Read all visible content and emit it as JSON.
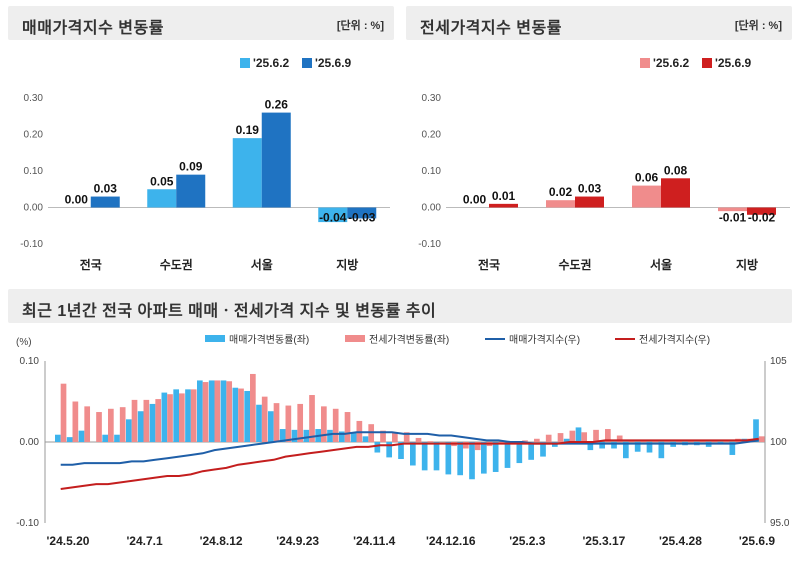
{
  "chart_data": [
    {
      "id": "sale",
      "type": "bar",
      "title": "매매가격지수 변동률",
      "unit_label": "[단위 : %]",
      "categories": [
        "전국",
        "수도권",
        "서울",
        "지방"
      ],
      "series": [
        {
          "name": "'25.6.2",
          "values": [
            0.0,
            0.05,
            0.19,
            -0.04
          ],
          "labels": [
            "0.00",
            "0.05",
            "0.19",
            "-0.04"
          ]
        },
        {
          "name": "'25.6.9",
          "values": [
            0.03,
            0.09,
            0.26,
            -0.03
          ],
          "labels": [
            "0.03",
            "0.09",
            "0.26",
            "-0.03"
          ]
        }
      ],
      "ylim": [
        -0.1,
        0.3
      ],
      "yticks": [
        "0.30",
        "0.20",
        "0.10",
        "0.00",
        "-0.10"
      ],
      "colors": [
        "#3db3ec",
        "#1f73c2"
      ]
    },
    {
      "id": "jeonse",
      "type": "bar",
      "title": "전세가격지수 변동률",
      "unit_label": "[단위 : %]",
      "categories": [
        "전국",
        "수도권",
        "서울",
        "지방"
      ],
      "series": [
        {
          "name": "'25.6.2",
          "values": [
            0.0,
            0.02,
            0.06,
            -0.01
          ],
          "labels": [
            "0.00",
            "0.02",
            "0.06",
            "-0.01"
          ]
        },
        {
          "name": "'25.6.9",
          "values": [
            0.01,
            0.03,
            0.08,
            -0.02
          ],
          "labels": [
            "0.01",
            "0.03",
            "0.08",
            "-0.02"
          ]
        }
      ],
      "ylim": [
        -0.1,
        0.3
      ],
      "yticks": [
        "0.30",
        "0.20",
        "0.10",
        "0.00",
        "-0.10"
      ],
      "colors": [
        "#f08c8c",
        "#cf1f1f"
      ]
    },
    {
      "id": "trend",
      "type": "bar",
      "title": "최근 1년간 전국 아파트 매매ㆍ전세가격 지수 및 변동률 추이",
      "y_left_unit": "(%)",
      "ylim_left": [
        -0.1,
        0.1
      ],
      "yticks_left": [
        "0.10",
        "0.00",
        "-0.10"
      ],
      "ylim_right": [
        95.0,
        105.0
      ],
      "yticks_right": [
        "105",
        "100",
        "95.0"
      ],
      "x_tick_labels": [
        "'24.5.20",
        "'24.7.1",
        "'24.8.12",
        "'24.9.23",
        "'24.11.4",
        "'24.12.16",
        "'25.2.3",
        "'25.3.17",
        "'25.4.28",
        "'25.6.9"
      ],
      "legend": [
        "매매가격변동률(좌)",
        "전세가격변동률(좌)",
        "매매가격지수(우)",
        "전세가격지수(우)"
      ],
      "colors": {
        "sale_bar": "#3db3ec",
        "jeonse_bar": "#f08c8c",
        "sale_line": "#1f5fa8",
        "jeonse_line": "#c41e1e"
      },
      "sale_rate": [
        0.009,
        0.006,
        0.014,
        0.0,
        0.009,
        0.009,
        0.028,
        0.038,
        0.047,
        0.061,
        0.065,
        0.065,
        0.076,
        0.076,
        0.076,
        0.067,
        0.063,
        0.046,
        0.038,
        0.016,
        0.015,
        0.015,
        0.016,
        0.015,
        0.013,
        0.012,
        0.007,
        -0.013,
        -0.019,
        -0.021,
        -0.029,
        -0.035,
        -0.035,
        -0.04,
        -0.041,
        -0.046,
        -0.039,
        -0.037,
        -0.032,
        -0.026,
        -0.022,
        -0.018,
        -0.006,
        0.004,
        0.018,
        -0.01,
        -0.008,
        -0.008,
        -0.02,
        -0.012,
        -0.013,
        -0.02,
        -0.006,
        -0.004,
        -0.004,
        -0.006,
        -0.003,
        -0.016,
        0.004,
        0.028
      ],
      "jeonse_rate": [
        0.072,
        0.05,
        0.044,
        0.037,
        0.041,
        0.043,
        0.052,
        0.052,
        0.053,
        0.059,
        0.06,
        0.065,
        0.074,
        0.076,
        0.075,
        0.066,
        0.084,
        0.056,
        0.048,
        0.045,
        0.047,
        0.058,
        0.044,
        0.041,
        0.037,
        0.026,
        0.022,
        0.014,
        0.012,
        0.012,
        0.005,
        0.001,
        0.0,
        -0.005,
        -0.008,
        -0.01,
        -0.005,
        -0.003,
        -0.001,
        0.002,
        0.004,
        0.009,
        0.011,
        0.014,
        0.012,
        0.015,
        0.016,
        0.008,
        0.002,
        0.003,
        0.001,
        0.001,
        0.003,
        0.002,
        0.003,
        0.002,
        0.001,
        0.004,
        0.004,
        0.007
      ],
      "sale_index": [
        98.6,
        98.6,
        98.7,
        98.7,
        98.7,
        98.7,
        98.8,
        98.8,
        98.9,
        99.0,
        99.1,
        99.2,
        99.3,
        99.5,
        99.6,
        99.7,
        99.8,
        99.9,
        100.0,
        100.1,
        100.2,
        100.3,
        100.4,
        100.5,
        100.5,
        100.6,
        100.6,
        100.6,
        100.6,
        100.5,
        100.5,
        100.5,
        100.4,
        100.4,
        100.3,
        100.2,
        100.1,
        100.1,
        100.0,
        100.0,
        99.9,
        99.9,
        99.9,
        99.9,
        99.9,
        99.9,
        99.9,
        99.9,
        99.9,
        99.9,
        99.9,
        99.9,
        99.9,
        99.9,
        99.9,
        99.9,
        99.9,
        99.9,
        100.0,
        100.1
      ],
      "jeonse_index": [
        97.1,
        97.2,
        97.3,
        97.4,
        97.4,
        97.5,
        97.6,
        97.7,
        97.8,
        97.9,
        97.9,
        98.0,
        98.2,
        98.3,
        98.4,
        98.6,
        98.7,
        98.8,
        98.9,
        99.1,
        99.2,
        99.3,
        99.4,
        99.5,
        99.6,
        99.7,
        99.7,
        99.8,
        99.8,
        99.9,
        99.9,
        99.9,
        99.9,
        99.9,
        99.9,
        99.9,
        99.9,
        99.9,
        99.9,
        99.9,
        99.9,
        99.9,
        99.9,
        100.0,
        100.0,
        100.0,
        100.1,
        100.1,
        100.1,
        100.1,
        100.1,
        100.1,
        100.1,
        100.1,
        100.1,
        100.1,
        100.1,
        100.1,
        100.1,
        100.2
      ]
    }
  ]
}
